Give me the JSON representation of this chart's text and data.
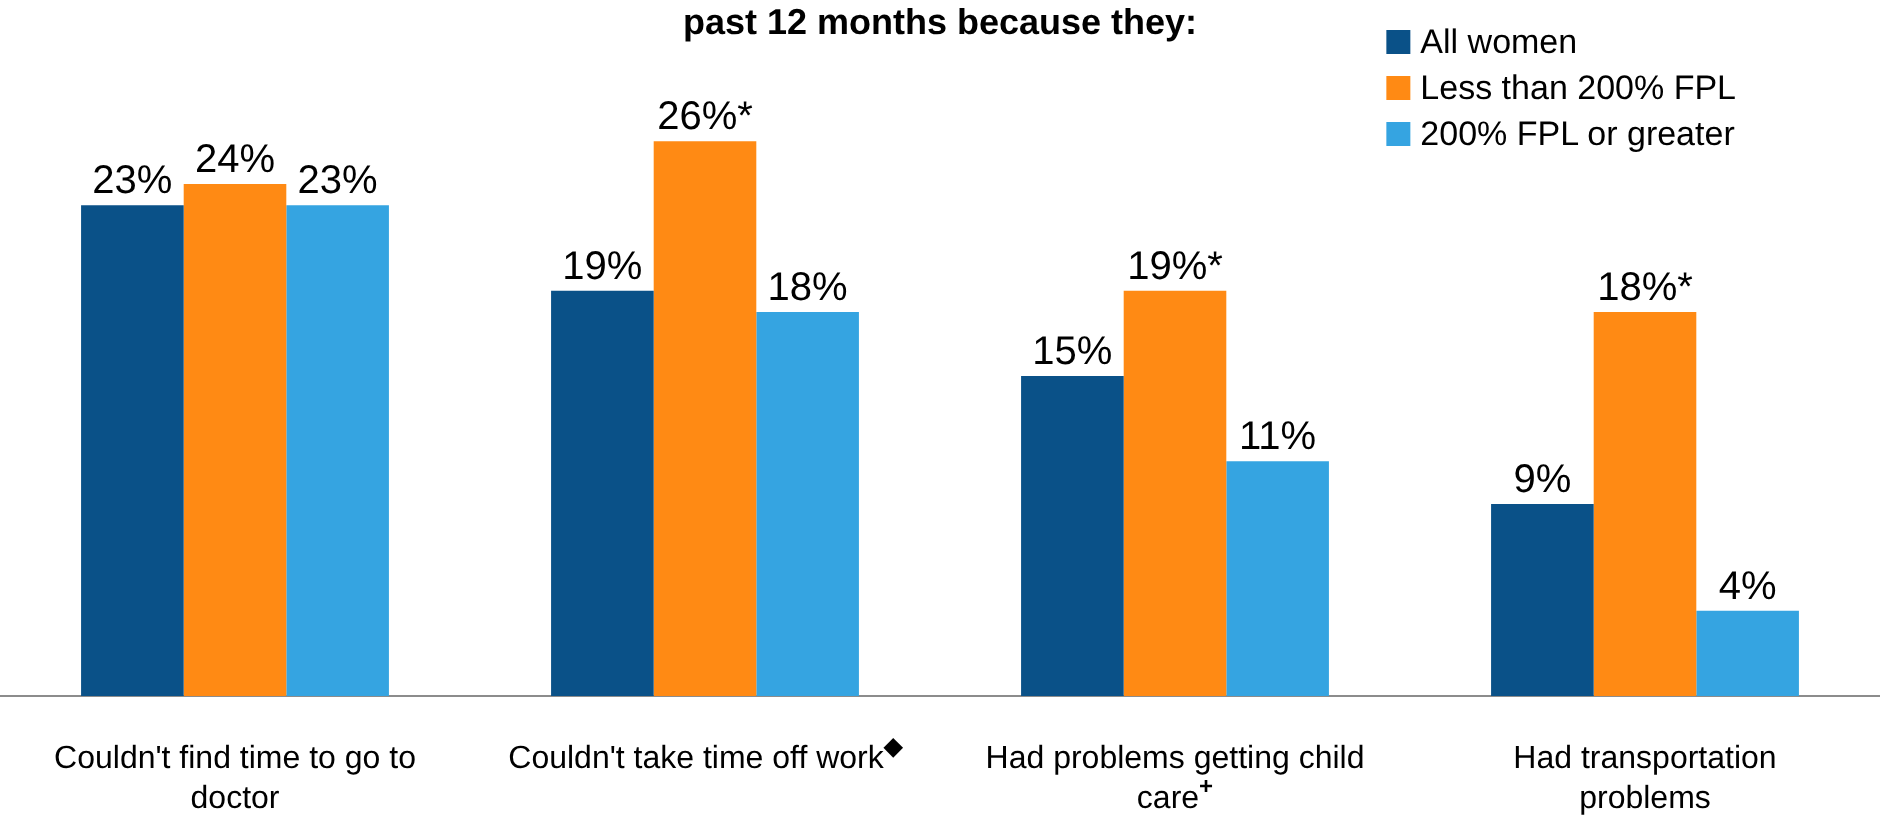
{
  "chart_data": {
    "type": "bar",
    "title": "past 12 months because they:",
    "categories": [
      "Couldn't find time to go to doctor",
      "Couldn't take time off work$^{◆}$",
      "Had problems getting child care$^{+}$",
      "Had transportation problems"
    ],
    "series": [
      {
        "name": "All women",
        "color": "#0a5188",
        "values": [
          23,
          19,
          15,
          9
        ],
        "value_labels": [
          "23%",
          "19%",
          "15%",
          "9%"
        ]
      },
      {
        "name": "Less than 200% FPL",
        "color": "#ff8a14",
        "values": [
          24,
          26,
          19,
          18
        ],
        "value_labels": [
          "24%",
          "26%*",
          "19%*",
          "18%*"
        ]
      },
      {
        "name": "200% FPL or greater",
        "color": "#35a4e1",
        "values": [
          23,
          18,
          11,
          4
        ],
        "value_labels": [
          "23%",
          "18%",
          "11%",
          "4%"
        ]
      }
    ],
    "tick_labels": "x",
    "legend": "top right"
  }
}
